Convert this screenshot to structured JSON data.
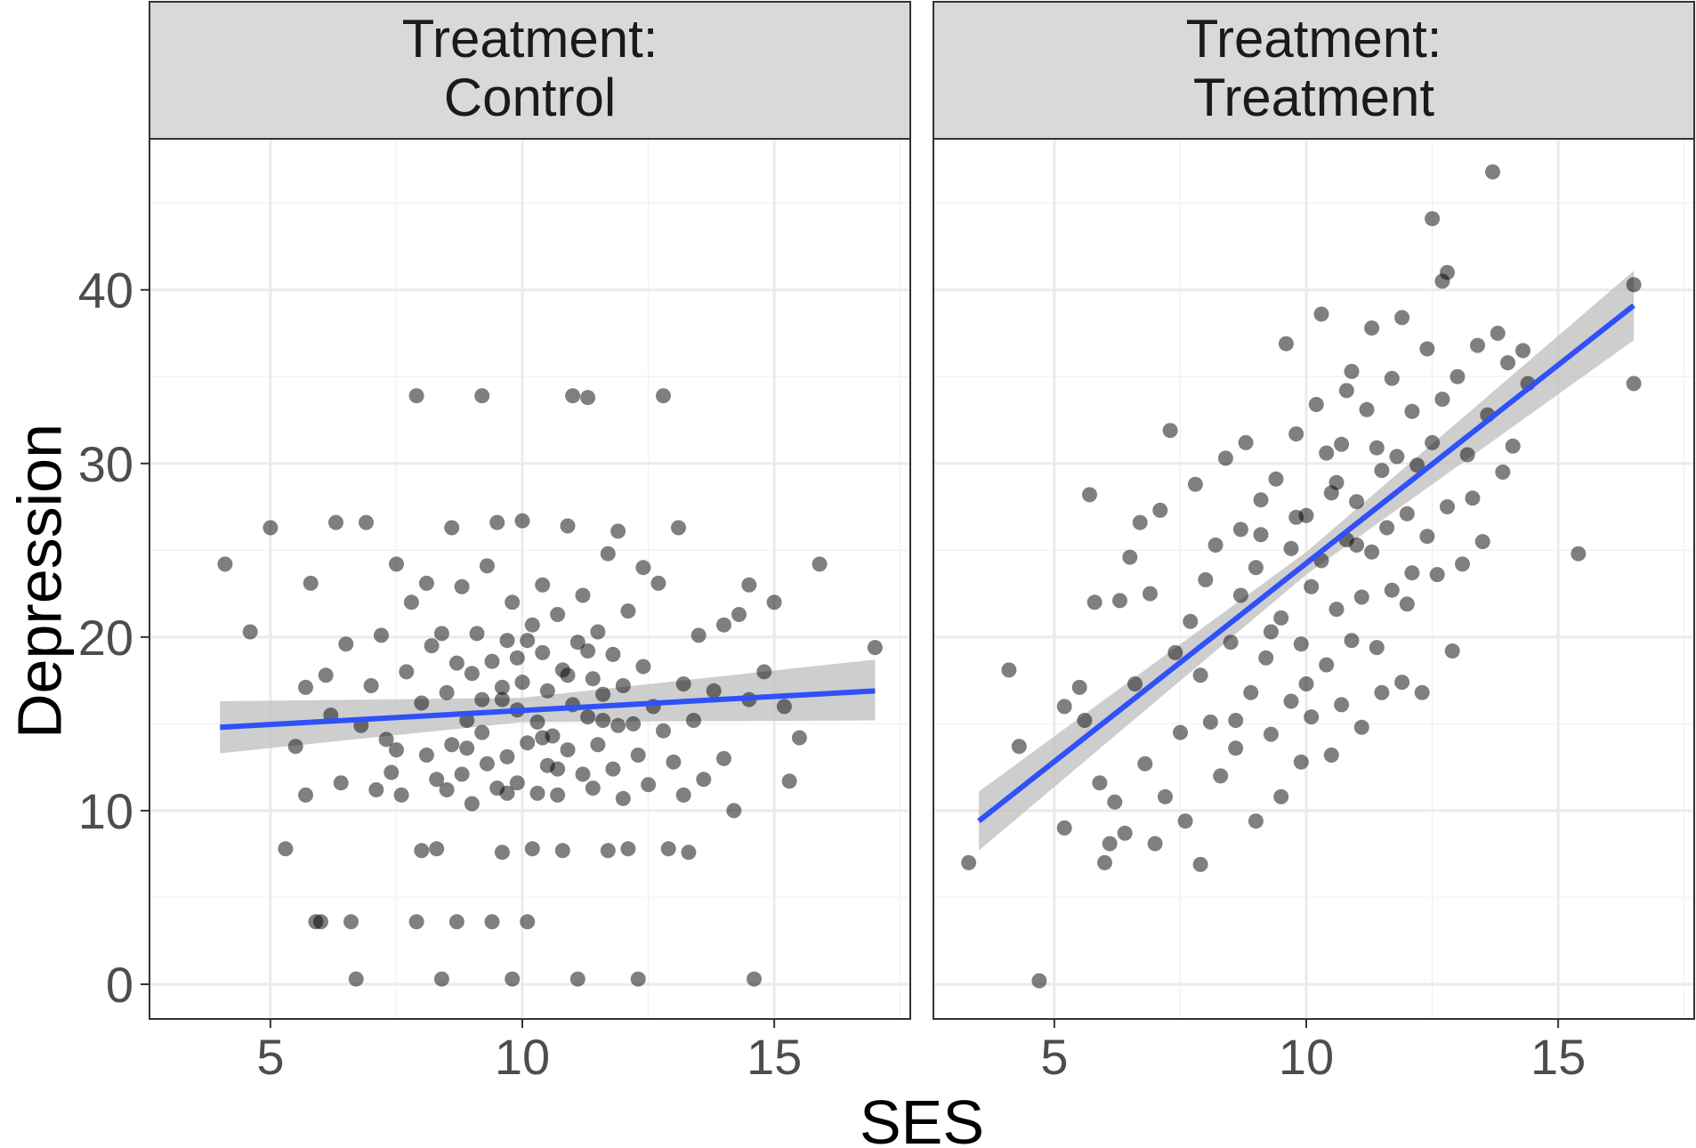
{
  "chart_data": {
    "type": "scatter",
    "xlabel": "SES",
    "ylabel": "Depression",
    "xlim": [
      2.6,
      17.7
    ],
    "ylim": [
      -2.0,
      48.7
    ],
    "x_ticks": [
      5,
      10,
      15
    ],
    "y_ticks": [
      0,
      10,
      20,
      30,
      40
    ],
    "grid": true,
    "legend": "none",
    "colors": {
      "point": "#000000",
      "fit_line": "#3050f8",
      "ci_band": "#bdbdbd",
      "strip": "#d9d9d9"
    },
    "panels": [
      {
        "strip_lines": [
          "Treatment:",
          "Control"
        ],
        "fit": {
          "x": [
            4.0,
            17.0
          ],
          "y": [
            14.8,
            16.9
          ]
        },
        "ci": {
          "x": [
            4.0,
            10.0,
            17.0
          ],
          "lower": [
            13.3,
            15.1,
            15.2
          ],
          "upper": [
            16.3,
            16.5,
            18.7
          ]
        },
        "points": [
          [
            4.1,
            24.2
          ],
          [
            4.6,
            20.3
          ],
          [
            5.0,
            26.3
          ],
          [
            5.3,
            7.8
          ],
          [
            5.5,
            13.7
          ],
          [
            5.7,
            17.1
          ],
          [
            5.7,
            10.9
          ],
          [
            5.8,
            23.1
          ],
          [
            5.9,
            3.6
          ],
          [
            6.0,
            3.6
          ],
          [
            6.1,
            17.8
          ],
          [
            6.2,
            15.5
          ],
          [
            6.3,
            26.6
          ],
          [
            6.4,
            11.6
          ],
          [
            6.5,
            19.6
          ],
          [
            6.6,
            3.6
          ],
          [
            6.7,
            0.3
          ],
          [
            6.8,
            14.9
          ],
          [
            6.9,
            26.6
          ],
          [
            7.0,
            17.2
          ],
          [
            7.1,
            11.2
          ],
          [
            7.2,
            20.1
          ],
          [
            7.3,
            14.1
          ],
          [
            7.4,
            12.2
          ],
          [
            7.5,
            24.2
          ],
          [
            7.5,
            13.5
          ],
          [
            7.6,
            10.9
          ],
          [
            7.7,
            18.0
          ],
          [
            7.8,
            22.0
          ],
          [
            7.9,
            3.6
          ],
          [
            7.9,
            33.9
          ],
          [
            8.0,
            16.2
          ],
          [
            8.0,
            7.7
          ],
          [
            8.1,
            23.1
          ],
          [
            8.1,
            13.2
          ],
          [
            8.2,
            19.5
          ],
          [
            8.3,
            11.8
          ],
          [
            8.3,
            7.8
          ],
          [
            8.4,
            20.2
          ],
          [
            8.4,
            0.3
          ],
          [
            8.5,
            16.8
          ],
          [
            8.6,
            13.8
          ],
          [
            8.6,
            26.3
          ],
          [
            8.7,
            18.5
          ],
          [
            8.7,
            3.6
          ],
          [
            8.8,
            12.1
          ],
          [
            8.8,
            22.9
          ],
          [
            8.9,
            15.2
          ],
          [
            9.0,
            17.9
          ],
          [
            9.0,
            10.4
          ],
          [
            9.1,
            20.2
          ],
          [
            9.2,
            33.9
          ],
          [
            9.2,
            14.5
          ],
          [
            9.3,
            12.7
          ],
          [
            9.3,
            24.1
          ],
          [
            9.4,
            18.6
          ],
          [
            9.4,
            3.6
          ],
          [
            9.5,
            11.3
          ],
          [
            9.5,
            26.6
          ],
          [
            9.6,
            16.4
          ],
          [
            9.6,
            7.6
          ],
          [
            9.7,
            13.1
          ],
          [
            9.7,
            19.8
          ],
          [
            9.8,
            0.3
          ],
          [
            9.8,
            22.0
          ],
          [
            9.9,
            15.8
          ],
          [
            9.9,
            11.6
          ],
          [
            10.0,
            17.4
          ],
          [
            10.0,
            26.7
          ],
          [
            10.1,
            13.9
          ],
          [
            10.1,
            3.6
          ],
          [
            10.2,
            20.7
          ],
          [
            10.2,
            7.8
          ],
          [
            10.3,
            15.1
          ],
          [
            10.3,
            11.0
          ],
          [
            10.4,
            19.1
          ],
          [
            10.4,
            23.0
          ],
          [
            10.5,
            12.6
          ],
          [
            10.5,
            16.9
          ],
          [
            10.6,
            14.3
          ],
          [
            10.7,
            21.3
          ],
          [
            10.7,
            10.9
          ],
          [
            10.8,
            18.1
          ],
          [
            10.8,
            7.7
          ],
          [
            10.9,
            13.5
          ],
          [
            10.9,
            26.4
          ],
          [
            11.0,
            16.1
          ],
          [
            11.0,
            33.9
          ],
          [
            11.1,
            19.7
          ],
          [
            11.1,
            0.3
          ],
          [
            11.2,
            12.1
          ],
          [
            11.2,
            22.4
          ],
          [
            11.3,
            15.4
          ],
          [
            11.3,
            33.8
          ],
          [
            11.4,
            17.6
          ],
          [
            11.4,
            11.3
          ],
          [
            11.5,
            13.8
          ],
          [
            11.5,
            20.3
          ],
          [
            11.6,
            16.7
          ],
          [
            11.7,
            7.7
          ],
          [
            11.7,
            24.8
          ],
          [
            11.8,
            12.4
          ],
          [
            11.8,
            19.0
          ],
          [
            11.9,
            14.9
          ],
          [
            11.9,
            26.1
          ],
          [
            12.0,
            17.2
          ],
          [
            12.0,
            10.7
          ],
          [
            12.1,
            21.5
          ],
          [
            12.1,
            7.8
          ],
          [
            12.2,
            15.0
          ],
          [
            12.3,
            0.3
          ],
          [
            12.3,
            13.2
          ],
          [
            12.4,
            18.3
          ],
          [
            12.4,
            24.0
          ],
          [
            12.5,
            11.5
          ],
          [
            12.6,
            16.0
          ],
          [
            12.7,
            23.1
          ],
          [
            12.8,
            33.9
          ],
          [
            12.8,
            14.6
          ],
          [
            12.9,
            7.8
          ],
          [
            13.0,
            12.8
          ],
          [
            13.1,
            26.3
          ],
          [
            13.2,
            17.3
          ],
          [
            13.2,
            10.9
          ],
          [
            13.3,
            7.6
          ],
          [
            13.4,
            15.2
          ],
          [
            13.5,
            20.1
          ],
          [
            13.6,
            11.8
          ],
          [
            13.8,
            16.9
          ],
          [
            14.0,
            13.0
          ],
          [
            14.0,
            20.7
          ],
          [
            14.2,
            10.0
          ],
          [
            14.3,
            21.3
          ],
          [
            14.5,
            16.4
          ],
          [
            14.5,
            23.0
          ],
          [
            14.6,
            0.3
          ],
          [
            14.8,
            18.0
          ],
          [
            15.0,
            22.0
          ],
          [
            15.2,
            16.0
          ],
          [
            15.3,
            11.7
          ],
          [
            15.5,
            14.2
          ],
          [
            15.9,
            24.2
          ],
          [
            17.0,
            19.4
          ],
          [
            9.6,
            17.1
          ],
          [
            10.4,
            14.2
          ],
          [
            8.9,
            13.6
          ],
          [
            9.9,
            18.8
          ],
          [
            10.7,
            12.4
          ],
          [
            11.6,
            15.2
          ],
          [
            9.2,
            16.4
          ],
          [
            10.1,
            19.8
          ],
          [
            8.5,
            11.2
          ],
          [
            11.3,
            19.2
          ],
          [
            9.7,
            11.0
          ],
          [
            10.9,
            17.8
          ]
        ]
      },
      {
        "strip_lines": [
          "Treatment:",
          "Treatment"
        ],
        "fit": {
          "x": [
            3.5,
            16.5
          ],
          "y": [
            9.4,
            39.1
          ]
        },
        "ci": {
          "x": [
            3.5,
            10.0,
            16.5
          ],
          "lower": [
            7.7,
            23.6,
            37.1
          ],
          "upper": [
            11.1,
            24.9,
            41.1
          ]
        },
        "points": [
          [
            3.3,
            7.0
          ],
          [
            4.1,
            18.1
          ],
          [
            4.3,
            13.7
          ],
          [
            4.7,
            0.2
          ],
          [
            5.2,
            9.0
          ],
          [
            5.2,
            16.0
          ],
          [
            5.5,
            17.1
          ],
          [
            5.6,
            15.2
          ],
          [
            5.7,
            28.2
          ],
          [
            5.8,
            22.0
          ],
          [
            5.9,
            11.6
          ],
          [
            6.0,
            7.0
          ],
          [
            6.1,
            8.1
          ],
          [
            6.2,
            10.5
          ],
          [
            6.3,
            22.1
          ],
          [
            6.4,
            8.7
          ],
          [
            6.5,
            24.6
          ],
          [
            6.6,
            17.3
          ],
          [
            6.7,
            26.6
          ],
          [
            6.8,
            12.7
          ],
          [
            6.9,
            22.5
          ],
          [
            7.0,
            8.1
          ],
          [
            7.1,
            27.3
          ],
          [
            7.2,
            10.8
          ],
          [
            7.3,
            31.9
          ],
          [
            7.4,
            19.1
          ],
          [
            7.5,
            14.5
          ],
          [
            7.6,
            9.4
          ],
          [
            7.7,
            20.9
          ],
          [
            7.8,
            28.8
          ],
          [
            7.9,
            17.8
          ],
          [
            7.9,
            6.9
          ],
          [
            8.0,
            23.3
          ],
          [
            8.1,
            15.1
          ],
          [
            8.2,
            25.3
          ],
          [
            8.3,
            12.0
          ],
          [
            8.4,
            30.3
          ],
          [
            8.5,
            19.7
          ],
          [
            8.6,
            13.6
          ],
          [
            8.7,
            22.4
          ],
          [
            8.8,
            31.2
          ],
          [
            8.9,
            16.8
          ],
          [
            9.0,
            24.0
          ],
          [
            9.0,
            9.4
          ],
          [
            9.1,
            27.9
          ],
          [
            9.2,
            18.8
          ],
          [
            9.3,
            14.4
          ],
          [
            9.4,
            29.1
          ],
          [
            9.5,
            21.1
          ],
          [
            9.5,
            10.8
          ],
          [
            9.6,
            36.9
          ],
          [
            9.7,
            25.1
          ],
          [
            9.7,
            16.3
          ],
          [
            9.8,
            31.7
          ],
          [
            9.9,
            19.6
          ],
          [
            9.9,
            12.8
          ],
          [
            10.0,
            27.0
          ],
          [
            10.1,
            22.9
          ],
          [
            10.1,
            15.4
          ],
          [
            10.2,
            33.4
          ],
          [
            10.3,
            24.4
          ],
          [
            10.3,
            38.6
          ],
          [
            10.4,
            18.4
          ],
          [
            10.5,
            28.3
          ],
          [
            10.5,
            13.2
          ],
          [
            10.6,
            21.6
          ],
          [
            10.7,
            31.1
          ],
          [
            10.7,
            16.1
          ],
          [
            10.8,
            25.6
          ],
          [
            10.9,
            35.3
          ],
          [
            10.9,
            19.8
          ],
          [
            11.0,
            27.8
          ],
          [
            11.1,
            22.3
          ],
          [
            11.1,
            14.8
          ],
          [
            11.2,
            33.1
          ],
          [
            11.3,
            24.9
          ],
          [
            11.3,
            37.8
          ],
          [
            11.4,
            19.4
          ],
          [
            11.5,
            29.6
          ],
          [
            11.5,
            16.8
          ],
          [
            11.6,
            26.3
          ],
          [
            11.7,
            34.9
          ],
          [
            11.7,
            22.7
          ],
          [
            11.8,
            30.4
          ],
          [
            11.9,
            38.4
          ],
          [
            11.9,
            17.4
          ],
          [
            12.0,
            27.1
          ],
          [
            12.1,
            23.7
          ],
          [
            12.1,
            33.0
          ],
          [
            12.2,
            29.9
          ],
          [
            12.3,
            16.8
          ],
          [
            12.4,
            36.6
          ],
          [
            12.4,
            25.8
          ],
          [
            12.5,
            44.1
          ],
          [
            12.5,
            31.2
          ],
          [
            12.6,
            23.6
          ],
          [
            12.7,
            40.5
          ],
          [
            12.7,
            33.7
          ],
          [
            12.8,
            27.5
          ],
          [
            12.8,
            41.0
          ],
          [
            12.9,
            19.2
          ],
          [
            13.0,
            35.0
          ],
          [
            13.1,
            24.2
          ],
          [
            13.2,
            30.5
          ],
          [
            13.3,
            28.0
          ],
          [
            13.4,
            36.8
          ],
          [
            13.5,
            25.5
          ],
          [
            13.6,
            32.8
          ],
          [
            13.7,
            46.8
          ],
          [
            13.8,
            37.5
          ],
          [
            13.9,
            29.5
          ],
          [
            14.0,
            35.8
          ],
          [
            14.1,
            31.0
          ],
          [
            14.3,
            36.5
          ],
          [
            14.4,
            34.6
          ],
          [
            15.4,
            24.8
          ],
          [
            16.5,
            40.3
          ],
          [
            16.5,
            34.6
          ],
          [
            9.3,
            20.3
          ],
          [
            10.6,
            28.9
          ],
          [
            11.4,
            30.9
          ],
          [
            8.7,
            26.2
          ],
          [
            10.0,
            17.3
          ],
          [
            12.0,
            21.9
          ],
          [
            9.8,
            26.9
          ],
          [
            10.4,
            30.6
          ],
          [
            11.0,
            25.3
          ],
          [
            8.6,
            15.2
          ],
          [
            10.8,
            34.2
          ],
          [
            9.1,
            25.9
          ]
        ]
      }
    ]
  }
}
